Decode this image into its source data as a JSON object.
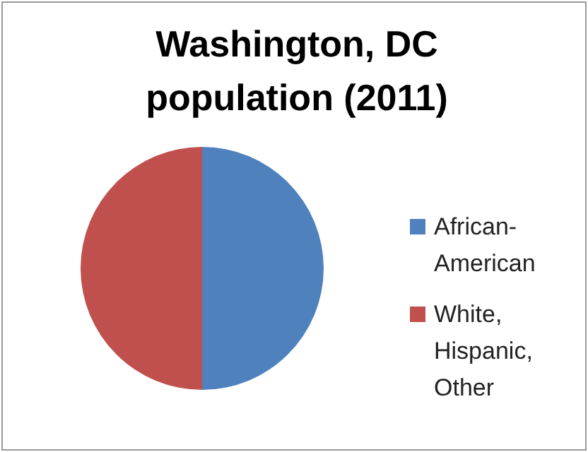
{
  "chart_data": {
    "type": "pie",
    "title": "Washington, DC population (2011)",
    "categories": [
      "African-American",
      "White, Hispanic, Other"
    ],
    "values": [
      50,
      50
    ],
    "colors": [
      "#4f81bd",
      "#c0504d"
    ],
    "legend": "right"
  }
}
